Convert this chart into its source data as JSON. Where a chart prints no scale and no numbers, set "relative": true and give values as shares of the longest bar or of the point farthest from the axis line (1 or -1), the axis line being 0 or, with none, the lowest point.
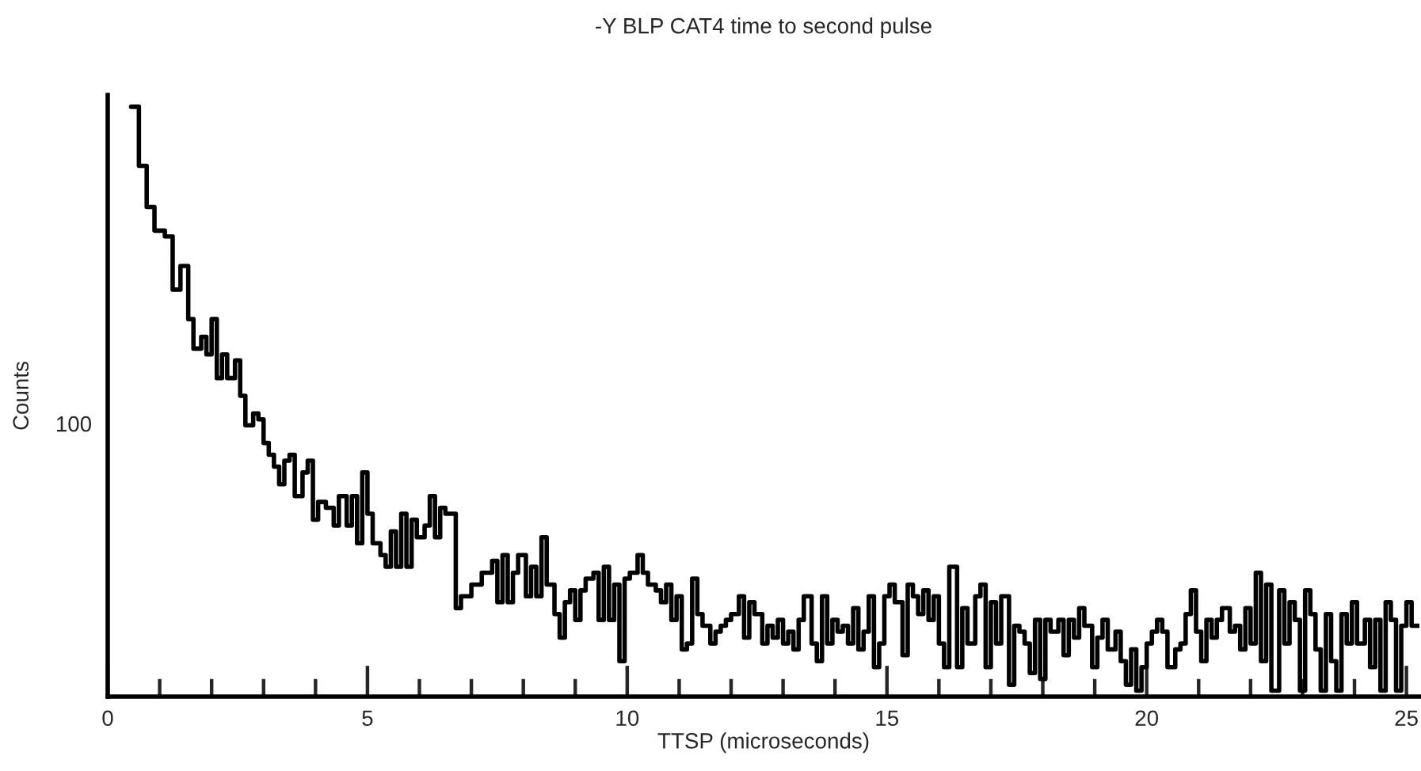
{
  "chart_data": {
    "type": "step",
    "title": "-Y BLP CAT4 time to second pulse",
    "xlabel": "TTSP (microseconds)",
    "ylabel": "Counts",
    "relative": true,
    "color": "#000000",
    "annotations": [
      "100"
    ],
    "xlim": [
      0,
      25.25
    ],
    "xticks": [
      0,
      {
        "value": 1,
        "label": null
      },
      {
        "value": 2,
        "label": null
      },
      {
        "value": 3,
        "label": null
      },
      {
        "value": 4,
        "label": null
      },
      5,
      {
        "value": 6,
        "label": null
      },
      {
        "value": 7,
        "label": null
      },
      {
        "value": 8,
        "label": null
      },
      {
        "value": 9,
        "label": null
      },
      10,
      {
        "value": 11,
        "label": null
      },
      {
        "value": 12,
        "label": null
      },
      {
        "value": 13,
        "label": null
      },
      {
        "value": 14,
        "label": null
      },
      15,
      {
        "value": 16,
        "label": null
      },
      {
        "value": 17,
        "label": null
      },
      {
        "value": 18,
        "label": null
      },
      {
        "value": 19,
        "label": null
      },
      20,
      {
        "value": 21,
        "label": null
      },
      {
        "value": 22,
        "label": null
      },
      {
        "value": 23,
        "label": null
      },
      {
        "value": 24,
        "label": null
      },
      25
    ],
    "x": [
      0.45,
      0.6,
      0.75,
      0.9,
      1.1,
      1.25,
      1.4,
      1.55,
      1.65,
      1.8,
      1.9,
      2.0,
      2.1,
      2.2,
      2.3,
      2.45,
      2.55,
      2.65,
      2.8,
      2.9,
      3.0,
      3.1,
      3.2,
      3.3,
      3.4,
      3.5,
      3.6,
      3.75,
      3.85,
      3.95,
      4.05,
      4.2,
      4.35,
      4.45,
      4.6,
      4.7,
      4.8,
      4.9,
      5.0,
      5.1,
      5.25,
      5.35,
      5.45,
      5.55,
      5.65,
      5.75,
      5.85,
      5.95,
      6.1,
      6.2,
      6.3,
      6.4,
      6.5,
      6.7,
      6.8,
      7.0,
      7.2,
      7.4,
      7.5,
      7.6,
      7.7,
      7.8,
      7.9,
      8.05,
      8.15,
      8.25,
      8.35,
      8.45,
      8.6,
      8.7,
      8.8,
      8.9,
      9.0,
      9.1,
      9.2,
      9.35,
      9.45,
      9.55,
      9.65,
      9.75,
      9.85,
      9.95,
      10.05,
      10.2,
      10.3,
      10.4,
      10.55,
      10.65,
      10.75,
      10.85,
      10.95,
      11.05,
      11.15,
      11.25,
      11.35,
      11.45,
      11.6,
      11.7,
      11.8,
      11.9,
      12.0,
      12.15,
      12.25,
      12.35,
      12.45,
      12.6,
      12.7,
      12.8,
      12.9,
      13.0,
      13.1,
      13.2,
      13.3,
      13.4,
      13.55,
      13.65,
      13.75,
      13.85,
      13.95,
      14.05,
      14.15,
      14.25,
      14.35,
      14.45,
      14.55,
      14.65,
      14.75,
      14.85,
      14.95,
      15.05,
      15.15,
      15.3,
      15.4,
      15.5,
      15.6,
      15.7,
      15.8,
      15.9,
      16.0,
      16.1,
      16.2,
      16.35,
      16.45,
      16.55,
      16.7,
      16.8,
      16.9,
      17.0,
      17.1,
      17.2,
      17.35,
      17.45,
      17.55,
      17.65,
      17.75,
      17.85,
      17.95,
      18.05,
      18.15,
      18.3,
      18.4,
      18.5,
      18.6,
      18.7,
      18.8,
      18.95,
      19.05,
      19.15,
      19.25,
      19.4,
      19.5,
      19.6,
      19.7,
      19.8,
      19.9,
      20.0,
      20.1,
      20.2,
      20.3,
      20.4,
      20.55,
      20.65,
      20.75,
      20.85,
      20.95,
      21.05,
      21.15,
      21.25,
      21.35,
      21.45,
      21.6,
      21.7,
      21.8,
      21.9,
      22.0,
      22.1,
      22.2,
      22.3,
      22.4,
      22.55,
      22.65,
      22.75,
      22.85,
      22.95,
      23.05,
      23.15,
      23.25,
      23.35,
      23.45,
      23.55,
      23.65,
      23.75,
      23.85,
      23.95,
      24.05,
      24.2,
      24.3,
      24.4,
      24.5,
      24.6,
      24.7,
      24.8,
      24.9,
      25.0,
      25.1,
      25.25
    ],
    "values": [
      1.0,
      0.9,
      0.83,
      0.79,
      0.78,
      0.69,
      0.73,
      0.64,
      0.59,
      0.61,
      0.58,
      0.64,
      0.54,
      0.58,
      0.54,
      0.57,
      0.51,
      0.46,
      0.48,
      0.47,
      0.43,
      0.41,
      0.39,
      0.36,
      0.4,
      0.41,
      0.34,
      0.38,
      0.4,
      0.3,
      0.33,
      0.32,
      0.29,
      0.34,
      0.29,
      0.34,
      0.26,
      0.38,
      0.31,
      0.26,
      0.24,
      0.22,
      0.28,
      0.22,
      0.31,
      0.22,
      0.3,
      0.27,
      0.29,
      0.34,
      0.27,
      0.32,
      0.31,
      0.15,
      0.17,
      0.19,
      0.21,
      0.23,
      0.16,
      0.24,
      0.16,
      0.21,
      0.24,
      0.17,
      0.22,
      0.17,
      0.27,
      0.19,
      0.14,
      0.1,
      0.16,
      0.18,
      0.13,
      0.18,
      0.2,
      0.21,
      0.13,
      0.22,
      0.13,
      0.19,
      0.06,
      0.2,
      0.21,
      0.24,
      0.21,
      0.19,
      0.18,
      0.16,
      0.19,
      0.13,
      0.17,
      0.08,
      0.09,
      0.2,
      0.14,
      0.12,
      0.09,
      0.11,
      0.12,
      0.13,
      0.14,
      0.17,
      0.1,
      0.16,
      0.14,
      0.09,
      0.12,
      0.1,
      0.13,
      0.09,
      0.11,
      0.08,
      0.13,
      0.17,
      0.09,
      0.06,
      0.17,
      0.09,
      0.13,
      0.11,
      0.12,
      0.09,
      0.15,
      0.08,
      0.11,
      0.17,
      0.05,
      0.09,
      0.17,
      0.19,
      0.16,
      0.07,
      0.19,
      0.17,
      0.14,
      0.18,
      0.13,
      0.17,
      0.09,
      0.05,
      0.22,
      0.05,
      0.15,
      0.09,
      0.17,
      0.19,
      0.05,
      0.16,
      0.09,
      0.17,
      0.02,
      0.12,
      0.11,
      0.09,
      0.04,
      0.13,
      0.03,
      0.13,
      0.11,
      0.13,
      0.07,
      0.13,
      0.1,
      0.15,
      0.12,
      0.05,
      0.1,
      0.13,
      0.08,
      0.11,
      0.06,
      0.02,
      0.08,
      0.01,
      0.05,
      0.09,
      0.11,
      0.13,
      0.11,
      0.05,
      0.08,
      0.09,
      0.14,
      0.18,
      0.11,
      0.06,
      0.13,
      0.1,
      0.13,
      0.15,
      0.11,
      0.12,
      0.08,
      0.15,
      0.09,
      0.21,
      0.06,
      0.19,
      0.01,
      0.18,
      0.09,
      0.16,
      0.13,
      0.01,
      0.18,
      0.14,
      0.08,
      0.01,
      0.14,
      0.06,
      0.01,
      0.14,
      0.09,
      0.16,
      0.09,
      0.13,
      0.05,
      0.13,
      0.01,
      0.16,
      0.13,
      0.01,
      0.12,
      0.16,
      0.12,
      0.12
    ]
  }
}
